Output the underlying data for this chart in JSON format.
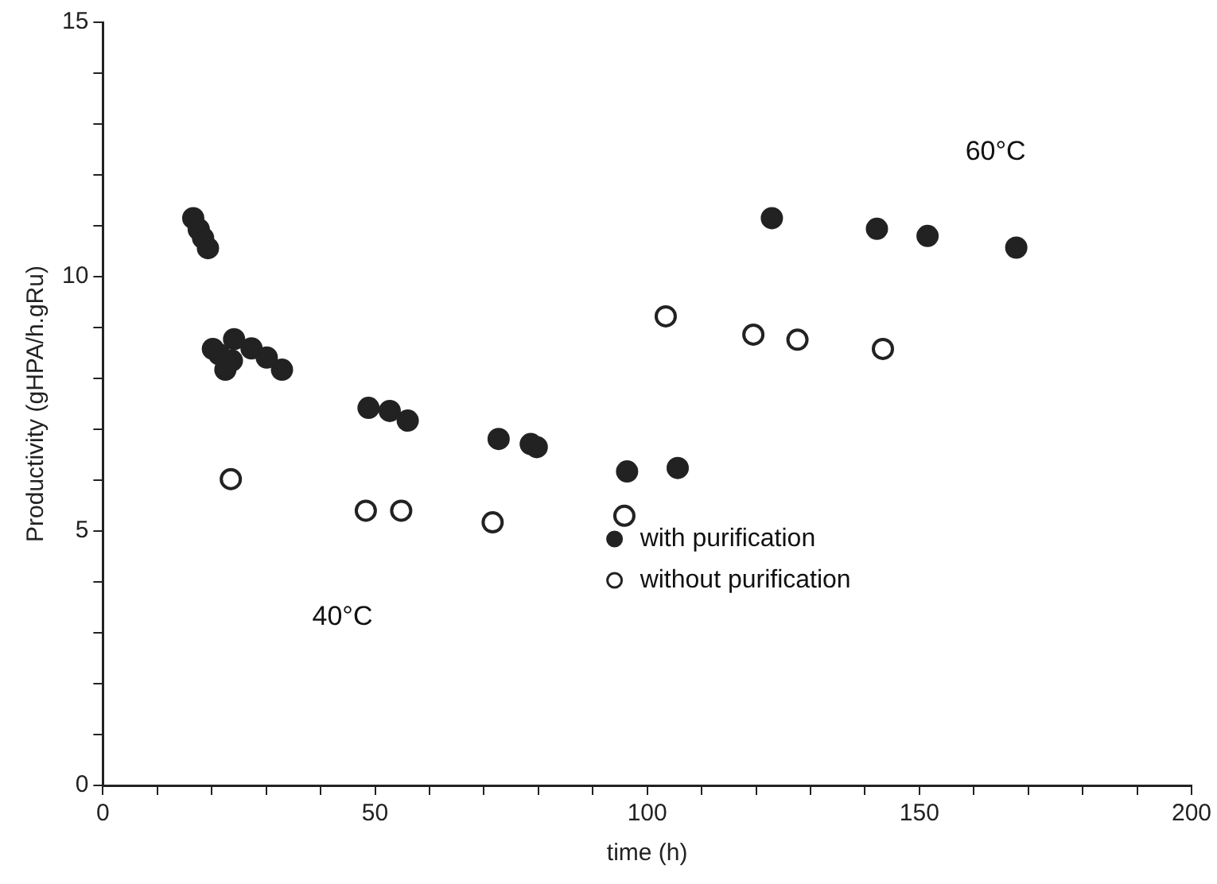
{
  "chart_data": {
    "type": "scatter",
    "xlabel": "time (h)",
    "ylabel": "Productivity (gHPA/h.gRu)",
    "xlim": [
      0,
      200
    ],
    "ylim": [
      0,
      15
    ],
    "xticks": [
      0,
      {
        "value": 10,
        "label": null
      },
      {
        "value": 20,
        "label": null
      },
      {
        "value": 30,
        "label": null
      },
      {
        "value": 40,
        "label": null
      },
      50,
      {
        "value": 60,
        "label": null
      },
      {
        "value": 70,
        "label": null
      },
      {
        "value": 80,
        "label": null
      },
      {
        "value": 90,
        "label": null
      },
      100,
      {
        "value": 110,
        "label": null
      },
      {
        "value": 120,
        "label": null
      },
      {
        "value": 130,
        "label": null
      },
      {
        "value": 140,
        "label": null
      },
      150,
      {
        "value": 160,
        "label": null
      },
      {
        "value": 170,
        "label": null
      },
      {
        "value": 180,
        "label": null
      },
      {
        "value": 190,
        "label": null
      },
      200
    ],
    "yticks": [
      0,
      {
        "value": 1,
        "label": null
      },
      {
        "value": 2,
        "label": null
      },
      {
        "value": 3,
        "label": null
      },
      {
        "value": 4,
        "label": null
      },
      5,
      {
        "value": 6,
        "label": null
      },
      {
        "value": 7,
        "label": null
      },
      {
        "value": 8,
        "label": null
      },
      {
        "value": 9,
        "label": null
      },
      10,
      {
        "value": 11,
        "label": null
      },
      {
        "value": 12,
        "label": null
      },
      {
        "value": 13,
        "label": null
      },
      {
        "value": 14,
        "label": null
      },
      15
    ],
    "grid": false,
    "legend": "bottom",
    "marker": "circle",
    "series": [
      {
        "name": "with purification",
        "color": "#222222",
        "x": [
          16.6,
          17.6,
          18.4,
          19.3,
          20.2,
          21.4,
          22.5,
          23.7,
          24.1,
          27.3,
          30.1,
          32.9,
          48.8,
          52.7,
          56.0,
          72.7,
          78.6,
          79.7,
          96.3,
          105.6,
          122.9,
          142.2,
          151.5,
          167.8
        ],
        "values": [
          11.15,
          10.93,
          10.76,
          10.56,
          8.58,
          8.47,
          8.17,
          8.35,
          8.77,
          8.59,
          8.41,
          8.17,
          7.42,
          7.36,
          7.17,
          6.81,
          6.71,
          6.65,
          6.17,
          6.24,
          11.15,
          10.94,
          10.8,
          10.57
        ]
      },
      {
        "name": "without purification",
        "color": "#ffffff",
        "x": [
          23.5,
          48.3,
          54.8,
          71.6,
          95.8,
          103.4,
          119.5,
          127.6,
          143.3
        ],
        "values": [
          6.02,
          5.4,
          5.4,
          5.17,
          5.3,
          9.22,
          8.86,
          8.76,
          8.58
        ]
      }
    ],
    "annotations": [
      "40°C",
      "60°C"
    ]
  }
}
